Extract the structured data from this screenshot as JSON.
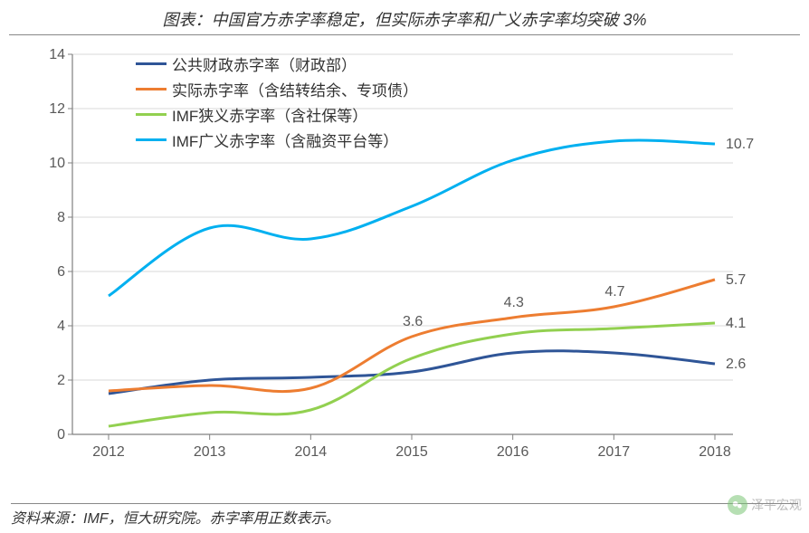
{
  "title": "图表：中国官方赤字率稳定，但实际赤字率和广义赤字率均突破 3%",
  "source": "资料来源：IMF，恒大研究院。赤字率用正数表示。",
  "watermark": "泽平宏观",
  "chart": {
    "type": "line",
    "background_color": "#ffffff",
    "grid_color": "#d9d9d9",
    "axis_color": "#808080",
    "text_color": "#595959",
    "title_fontsize": 18,
    "label_fontsize": 16,
    "ylim": [
      0,
      14
    ],
    "ytick_step": 2,
    "yticks": [
      0,
      2,
      4,
      6,
      8,
      10,
      12,
      14
    ],
    "categories": [
      "2012",
      "2013",
      "2014",
      "2015",
      "2016",
      "2017",
      "2018"
    ],
    "line_width": 3,
    "series": [
      {
        "name": "公共财政赤字率（财政部）",
        "color": "#2f5597",
        "values": [
          1.5,
          2.0,
          2.1,
          2.3,
          3.0,
          3.0,
          2.6
        ],
        "end_label": "2.6"
      },
      {
        "name": "实际赤字率（含结转结余、专项债）",
        "color": "#ed7d31",
        "values": [
          1.6,
          1.8,
          1.7,
          3.6,
          4.3,
          4.7,
          5.7
        ],
        "point_labels": {
          "3": "3.6",
          "4": "4.3",
          "5": "4.7"
        },
        "end_label": "5.7"
      },
      {
        "name": "IMF狭义赤字率（含社保等）",
        "color": "#92d050",
        "values": [
          0.3,
          0.8,
          0.9,
          2.8,
          3.7,
          3.9,
          4.1
        ],
        "end_label": "4.1"
      },
      {
        "name": "IMF广义赤字率（含融资平台等）",
        "color": "#00b0f0",
        "values": [
          5.1,
          7.6,
          7.2,
          8.4,
          10.1,
          10.8,
          10.7
        ],
        "end_label": "10.7"
      }
    ]
  }
}
